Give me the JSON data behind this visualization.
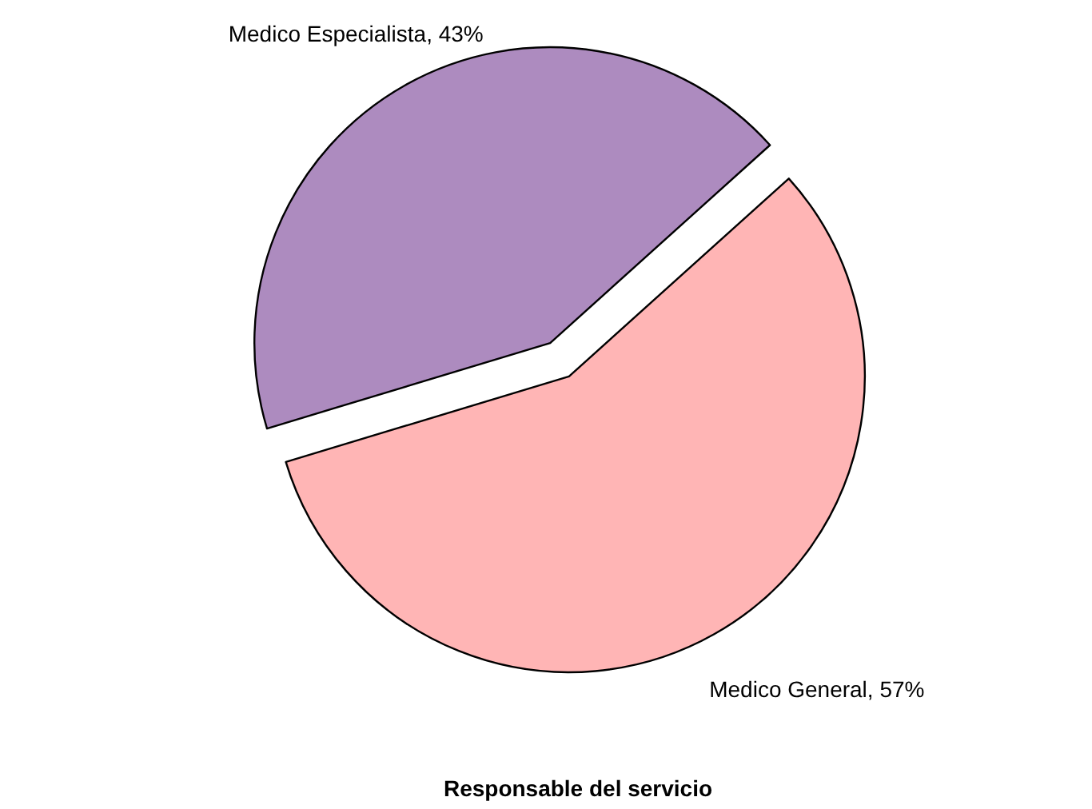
{
  "chart_data": {
    "type": "pie",
    "title": "Responsable del servicio",
    "categories": [
      "Medico General",
      "Medico Especialista"
    ],
    "values": [
      57,
      43
    ],
    "value_labels": [
      "57%",
      "43%"
    ],
    "colors": [
      "#ffb5b5",
      "#ad8bbf"
    ],
    "legend": false
  }
}
